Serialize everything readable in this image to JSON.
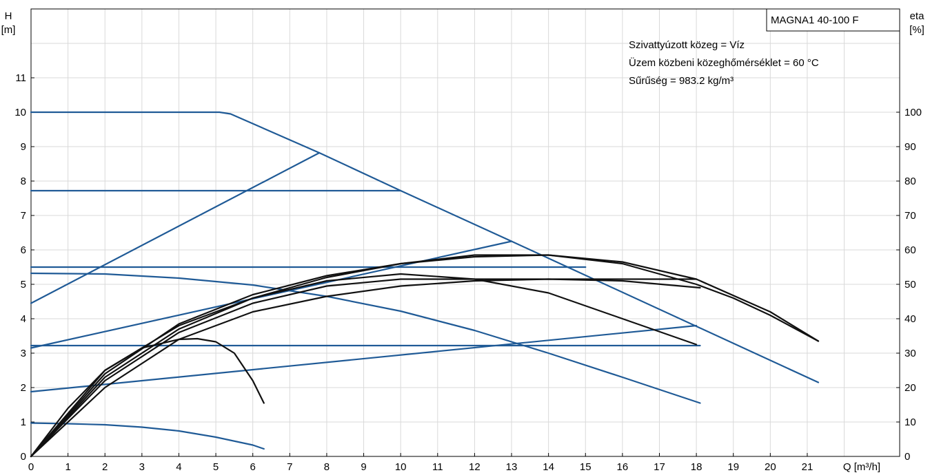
{
  "chart_data": {
    "type": "line",
    "title_box": "MAGNA1 40-100 F",
    "notes": [
      "Szivattyúzott közeg = Víz",
      "Üzem közbeni közeghőmérséklet = 60 °C",
      "Sűrűség = 983.2 kg/m³"
    ],
    "ylabel_left_name": "H",
    "ylabel_left_unit": "[m]",
    "ylabel_right_name": "eta",
    "ylabel_right_unit": "[%]",
    "xlabel": "Q [m³/h]",
    "x_ticks": [
      0,
      1,
      2,
      3,
      4,
      5,
      6,
      7,
      8,
      9,
      10,
      11,
      12,
      13,
      14,
      15,
      16,
      17,
      18,
      19,
      20,
      21
    ],
    "y_left_ticks": [
      0,
      1,
      2,
      3,
      4,
      5,
      6,
      7,
      8,
      9,
      10,
      11
    ],
    "y_right_ticks": [
      0,
      10,
      20,
      30,
      40,
      50,
      60,
      70,
      80,
      90,
      100
    ],
    "xlim": [
      0,
      23.5
    ],
    "ylim": [
      0,
      13
    ],
    "ylim_right": [
      0,
      130
    ],
    "grid": true,
    "colors": {
      "head_curves": "#1f5a96",
      "efficiency_curves": "#111111"
    },
    "head_curves": [
      {
        "x": [
          0,
          5.1,
          5.4,
          7.8,
          10,
          13,
          21.3
        ],
        "y": [
          10,
          10,
          9.95,
          8.82,
          7.72,
          6.25,
          2.15
        ]
      },
      {
        "x": [
          0,
          7.8
        ],
        "y": [
          4.45,
          8.82
        ]
      },
      {
        "x": [
          0,
          10
        ],
        "y": [
          7.72,
          7.72
        ]
      },
      {
        "x": [
          0,
          15
        ],
        "y": [
          5.5,
          5.5
        ]
      },
      {
        "x": [
          0,
          13
        ],
        "y": [
          3.15,
          6.25
        ]
      },
      {
        "x": [
          0,
          18.1
        ],
        "y": [
          3.22,
          3.22
        ]
      },
      {
        "x": [
          0,
          18
        ],
        "y": [
          1.88,
          3.8
        ]
      },
      {
        "x": [
          0,
          2,
          4,
          6,
          8,
          10,
          12,
          14,
          16,
          18.1
        ],
        "y": [
          5.32,
          5.3,
          5.18,
          4.98,
          4.65,
          4.22,
          3.66,
          3.0,
          2.3,
          1.55
        ]
      },
      {
        "x": [
          0,
          1,
          2,
          3,
          4,
          5,
          6,
          6.3
        ],
        "y": [
          0.97,
          0.95,
          0.92,
          0.85,
          0.74,
          0.56,
          0.33,
          0.22
        ]
      }
    ],
    "efficiency_curves": [
      {
        "x": [
          0,
          1,
          2,
          3,
          4,
          4.5,
          5,
          5.5,
          6,
          6.3
        ],
        "y": [
          0,
          14,
          25,
          31.5,
          34,
          34.2,
          33.3,
          30,
          22,
          15.5
        ]
      },
      {
        "x": [
          0,
          2,
          4,
          6,
          8,
          10,
          12,
          14,
          16,
          18
        ],
        "y": [
          0,
          25,
          38,
          46,
          51,
          53,
          51.5,
          47.5,
          40,
          32.5
        ]
      },
      {
        "x": [
          0,
          2,
          4,
          6,
          8,
          10,
          12,
          14,
          16,
          18
        ],
        "y": [
          0,
          22,
          36,
          44.5,
          49.5,
          51.5,
          51.5,
          51.5,
          51.5,
          51.5
        ]
      },
      {
        "x": [
          0,
          2,
          4,
          6,
          8,
          10,
          12,
          14,
          16,
          18.1
        ],
        "y": [
          0,
          20,
          34,
          42,
          46.5,
          49.5,
          51,
          51.5,
          51,
          49
        ]
      },
      {
        "x": [
          0,
          2,
          4,
          6,
          8,
          10,
          12,
          14,
          16,
          18,
          20,
          21.3
        ],
        "y": [
          0,
          24,
          38.5,
          47,
          52.5,
          56,
          58,
          58.5,
          56.5,
          51.5,
          42,
          33.5
        ]
      },
      {
        "x": [
          0,
          2,
          4,
          6,
          8,
          10,
          12,
          14,
          16,
          18,
          19,
          20,
          21.3
        ],
        "y": [
          0,
          23,
          37,
          46,
          52,
          56,
          58.5,
          58.5,
          56,
          50,
          46,
          41,
          33.5
        ]
      }
    ]
  }
}
